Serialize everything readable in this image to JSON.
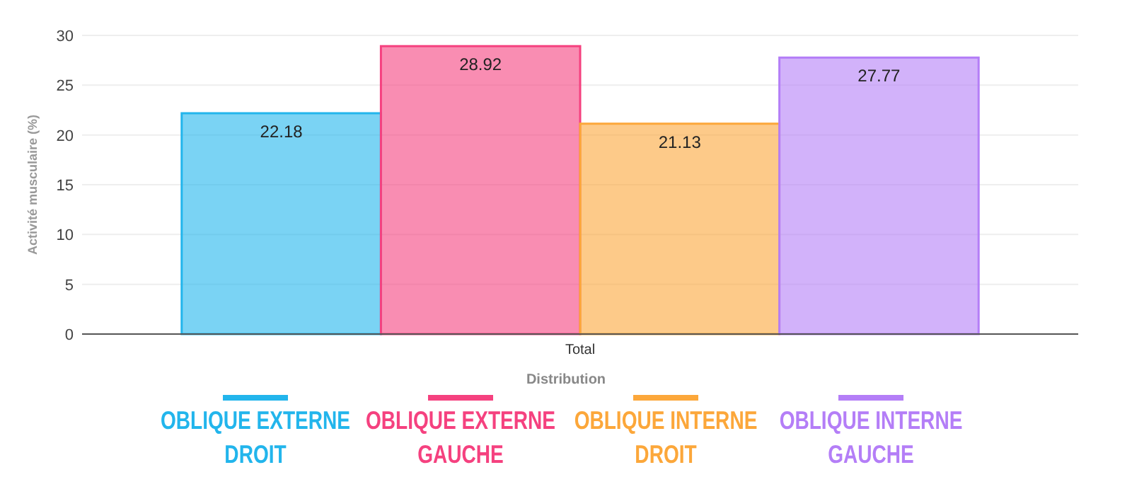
{
  "chart_data": {
    "type": "bar",
    "categories": [
      "Total"
    ],
    "xlabel": "Distribution",
    "ylabel": "Activité musculaire (%)",
    "ylim": [
      0,
      30
    ],
    "yticks": [
      0,
      5,
      10,
      15,
      20,
      25,
      30
    ],
    "grid": "y",
    "legend": "bottom",
    "data_labels": true,
    "series": [
      {
        "name": "OBLIQUE EXTERNE DROIT",
        "color": "#22b5ec",
        "values": [
          22.18
        ]
      },
      {
        "name": "OBLIQUE EXTERNE GAUCHE",
        "color": "#f5417f",
        "values": [
          28.92
        ]
      },
      {
        "name": "OBLIQUE INTERNE DROIT",
        "color": "#fca73a",
        "values": [
          21.13
        ]
      },
      {
        "name": "OBLIQUE INTERNE GAUCHE",
        "color": "#b47ef7",
        "values": [
          27.77
        ]
      }
    ]
  }
}
